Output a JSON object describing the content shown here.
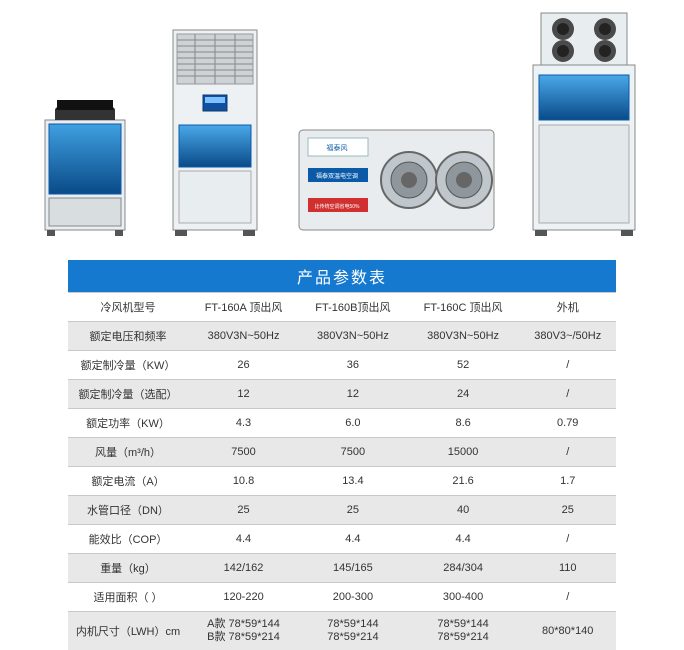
{
  "table": {
    "title": "产品参数表",
    "headers": [
      "冷风机型号",
      "FT-160A 顶出风",
      "FT-160B顶出风",
      "FT-160C 顶出风",
      "外机"
    ],
    "rows": [
      {
        "label": "额定电压和频率",
        "c1": "380V3N~50Hz",
        "c2": "380V3N~50Hz",
        "c3": "380V3N~50Hz",
        "c4": "380V3~/50Hz",
        "alt": true
      },
      {
        "label": "额定制冷量（KW）",
        "c1": "26",
        "c2": "36",
        "c3": "52",
        "c4": "/",
        "alt": false
      },
      {
        "label": "额定制冷量（选配）",
        "c1": "12",
        "c2": "12",
        "c3": "24",
        "c4": "/",
        "alt": true
      },
      {
        "label": "额定功率（KW）",
        "c1": "4.3",
        "c2": "6.0",
        "c3": "8.6",
        "c4": "0.79",
        "alt": false
      },
      {
        "label": "风量（m³/h）",
        "c1": "7500",
        "c2": "7500",
        "c3": "15000",
        "c4": "/",
        "alt": true
      },
      {
        "label": "额定电流（A）",
        "c1": "10.8",
        "c2": "13.4",
        "c3": "21.6",
        "c4": "1.7",
        "alt": false
      },
      {
        "label": "水管口径（DN）",
        "c1": "25",
        "c2": "25",
        "c3": "40",
        "c4": "25",
        "alt": true
      },
      {
        "label": "能效比（COP）",
        "c1": "4.4",
        "c2": "4.4",
        "c3": "4.4",
        "c4": "/",
        "alt": false
      },
      {
        "label": "重量（kg）",
        "c1": "142/162",
        "c2": "145/165",
        "c3": "284/304",
        "c4": "110",
        "alt": true
      },
      {
        "label": "适用面积（   ）",
        "c1": "120-220",
        "c2": "200-300",
        "c3": "300-400",
        "c4": "/",
        "alt": false
      }
    ],
    "dimRow": {
      "label": "内机尺寸（LWH）cm",
      "prefixA": "A款",
      "prefixB": "B款",
      "c1a": "78*59*144",
      "c1b": "78*59*214",
      "c2a": "78*59*144",
      "c2b": "78*59*214",
      "c3a": "78*59*144",
      "c3b": "78*59*214",
      "c4": "80*80*140"
    }
  },
  "colors": {
    "titleBg": "#1679d0",
    "altRow": "#e8e8e8",
    "border": "#c9c9c9",
    "text": "#333333",
    "labelBlue": "#0a5aa8"
  }
}
